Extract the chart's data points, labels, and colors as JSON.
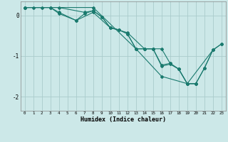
{
  "xlabel": "Humidex (Indice chaleur)",
  "background_color": "#cce8e8",
  "line_color": "#1a7a6e",
  "grid_color": "#aacccc",
  "xlim": [
    -0.5,
    23.5
  ],
  "ylim": [
    -2.35,
    0.35
  ],
  "yticks": [
    -2,
    -1,
    0
  ],
  "xticks": [
    0,
    1,
    2,
    3,
    4,
    5,
    6,
    7,
    8,
    9,
    10,
    11,
    12,
    13,
    14,
    15,
    16,
    17,
    18,
    19,
    20,
    21,
    22,
    23
  ],
  "series1": [
    [
      0,
      0.2
    ],
    [
      1,
      0.2
    ],
    [
      2,
      0.2
    ],
    [
      3,
      0.2
    ],
    [
      4,
      0.05
    ],
    [
      6,
      -0.12
    ],
    [
      7,
      0.05
    ],
    [
      8,
      0.12
    ],
    [
      9,
      -0.03
    ],
    [
      10,
      -0.3
    ],
    [
      11,
      -0.35
    ],
    [
      12,
      -0.45
    ],
    [
      13,
      -0.82
    ],
    [
      14,
      -0.82
    ],
    [
      15,
      -0.82
    ],
    [
      16,
      -1.25
    ],
    [
      17,
      -1.2
    ],
    [
      18,
      -1.32
    ],
    [
      19,
      -1.68
    ],
    [
      20,
      -1.68
    ],
    [
      21,
      -1.3
    ],
    [
      22,
      -0.85
    ],
    [
      23,
      -0.7
    ]
  ],
  "series2": [
    [
      0,
      0.2
    ],
    [
      3,
      0.2
    ],
    [
      4,
      0.08
    ],
    [
      6,
      -0.12
    ],
    [
      8,
      0.08
    ],
    [
      10,
      -0.3
    ],
    [
      12,
      -0.42
    ],
    [
      14,
      -0.82
    ],
    [
      15,
      -0.82
    ],
    [
      16,
      -0.82
    ],
    [
      17,
      -1.18
    ],
    [
      18,
      -1.32
    ],
    [
      19,
      -1.68
    ],
    [
      20,
      -1.68
    ],
    [
      21,
      -1.3
    ],
    [
      22,
      -0.85
    ]
  ],
  "series3": [
    [
      0,
      0.2
    ],
    [
      4,
      0.2
    ],
    [
      7,
      0.08
    ],
    [
      8,
      0.12
    ],
    [
      9,
      -0.03
    ],
    [
      10,
      -0.3
    ],
    [
      11,
      -0.35
    ],
    [
      12,
      -0.45
    ],
    [
      13,
      -0.82
    ],
    [
      14,
      -0.82
    ],
    [
      15,
      -0.82
    ],
    [
      16,
      -1.22
    ],
    [
      17,
      -1.18
    ],
    [
      18,
      -1.32
    ],
    [
      19,
      -1.68
    ],
    [
      20,
      -1.68
    ]
  ],
  "series4": [
    [
      0,
      0.2
    ],
    [
      8,
      0.2
    ],
    [
      13,
      -0.82
    ],
    [
      16,
      -1.5
    ],
    [
      19,
      -1.68
    ],
    [
      22,
      -0.85
    ],
    [
      23,
      -0.7
    ]
  ]
}
